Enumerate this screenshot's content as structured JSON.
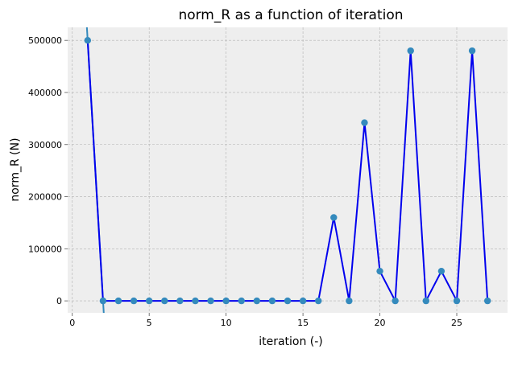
{
  "chart_data": {
    "type": "line",
    "title": "norm_R as a function of iteration",
    "xlabel": "iteration (-)",
    "ylabel": "norm_R (N)",
    "xlim": [
      -0.3,
      28.3
    ],
    "ylim": [
      -23000,
      525000
    ],
    "xticks": [
      0,
      5,
      10,
      15,
      20,
      25
    ],
    "yticks": [
      0,
      100000,
      200000,
      300000,
      400000,
      500000
    ],
    "grid": true,
    "series": [
      {
        "x": [
          1,
          2,
          3,
          4,
          5,
          6,
          7,
          8,
          9,
          10,
          11,
          12,
          13,
          14,
          15,
          16,
          17,
          18,
          19,
          20,
          21,
          22,
          23,
          24,
          25,
          26,
          27
        ],
        "y": [
          500000,
          0,
          0,
          0,
          0,
          0,
          0,
          0,
          0,
          0,
          0,
          0,
          0,
          0,
          0,
          0,
          160000,
          0,
          342000,
          57000,
          0,
          480000,
          0,
          57000,
          0,
          480000,
          0
        ],
        "line_color": "#0000ee",
        "marker_color": "#348abd"
      }
    ],
    "extra_line": {
      "x": [
        1,
        2
      ],
      "y": [
        500000,
        0
      ],
      "extend": true,
      "color": "#348abd"
    }
  }
}
